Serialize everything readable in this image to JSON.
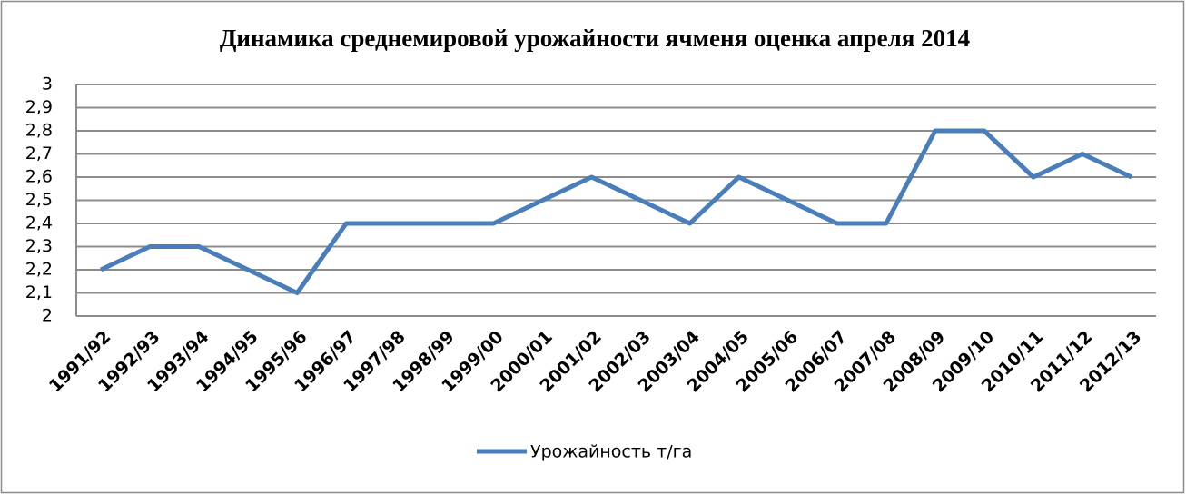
{
  "chart_data": {
    "type": "line",
    "title": "Динамика среднемировой урожайности ячменя оценка апреля 2014",
    "categories": [
      "1991/92",
      "1992/93",
      "1993/94",
      "1994/95",
      "1995/96",
      "1996/97",
      "1997/98",
      "1998/99",
      "1999/00",
      "2000/01",
      "2001/02",
      "2002/03",
      "2003/04",
      "2004/05",
      "2005/06",
      "2006/07",
      "2007/08",
      "2008/09",
      "2009/10",
      "2010/11",
      "2011/12",
      "2012/13"
    ],
    "series": [
      {
        "name": "Урожайность т/га",
        "color": "#4a7ebb",
        "values": [
          2.2,
          2.3,
          2.3,
          2.2,
          2.1,
          2.4,
          2.4,
          2.4,
          2.4,
          2.5,
          2.6,
          2.5,
          2.4,
          2.6,
          2.5,
          2.4,
          2.4,
          2.8,
          2.8,
          2.6,
          2.7,
          2.6
        ]
      }
    ],
    "ylim": [
      2,
      3
    ],
    "yticks": [
      2,
      {
        "value": 2.1,
        "label": "2,1"
      },
      {
        "value": 2.2,
        "label": "2,2"
      },
      {
        "value": 2.3,
        "label": "2,3"
      },
      {
        "value": 2.4,
        "label": "2,4"
      },
      {
        "value": 2.5,
        "label": "2,5"
      },
      {
        "value": 2.6,
        "label": "2,6"
      },
      {
        "value": 2.7,
        "label": "2,7"
      },
      {
        "value": 2.8,
        "label": "2,8"
      },
      {
        "value": 2.9,
        "label": "2,9"
      },
      3
    ],
    "grid": true,
    "legend": "bottom"
  }
}
